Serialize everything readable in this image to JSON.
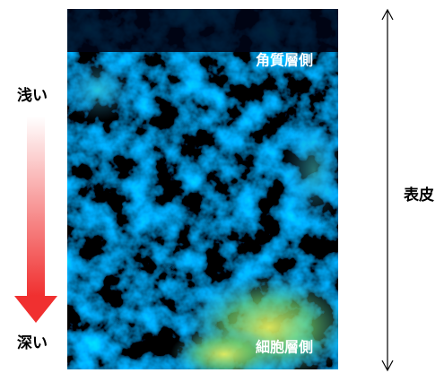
{
  "depth_labels": {
    "shallow": "浅い",
    "deep": "深い"
  },
  "image_labels": {
    "top": "角質層側",
    "bottom": "細胞層側"
  },
  "extent_label": "表皮"
}
